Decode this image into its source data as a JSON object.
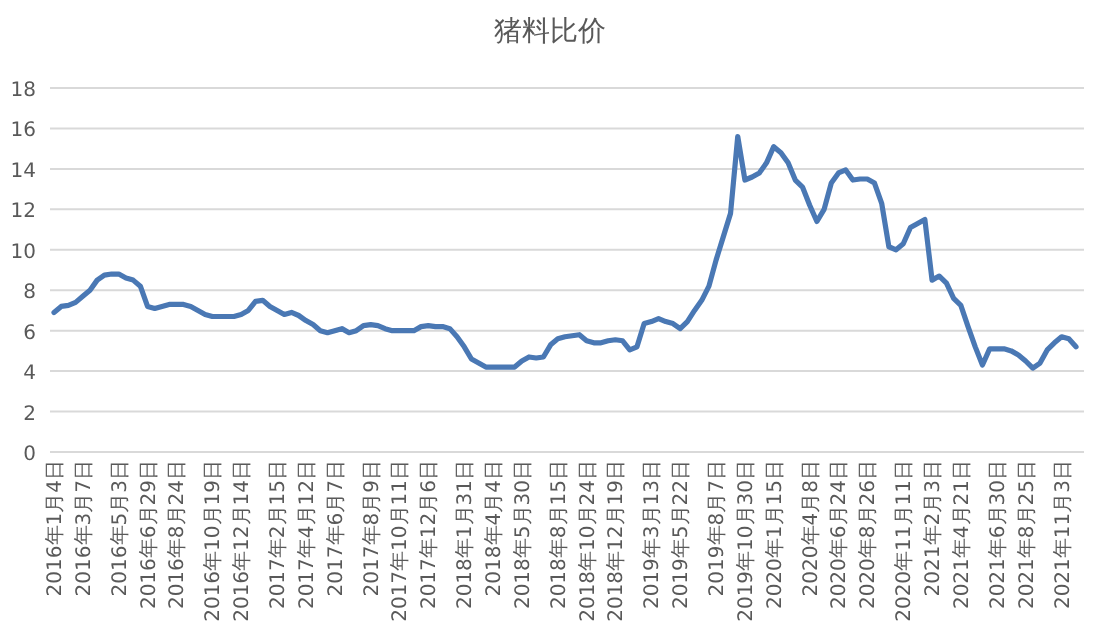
{
  "chart_data": {
    "type": "line",
    "title": "猪料比价",
    "categories": [
      "2016年1月4日",
      null,
      null,
      null,
      "2016年3月7日",
      null,
      null,
      null,
      null,
      "2016年5月3日",
      null,
      null,
      null,
      "2016年6月29日",
      null,
      null,
      null,
      "2016年8月24日",
      null,
      null,
      null,
      null,
      "2016年10月19日",
      null,
      null,
      null,
      "2016年12月14日",
      null,
      null,
      null,
      null,
      "2017年2月15日",
      null,
      null,
      null,
      "2017年4月12日",
      null,
      null,
      null,
      "2017年6月7日",
      null,
      null,
      null,
      null,
      "2017年8月9日",
      null,
      null,
      null,
      "2017年10月11日",
      null,
      null,
      null,
      "2017年12月6日",
      null,
      null,
      null,
      null,
      "2018年1月31日",
      null,
      null,
      null,
      "2018年4月4日",
      null,
      null,
      null,
      "2018年5月30日",
      null,
      null,
      null,
      null,
      "2018年8月15日",
      null,
      null,
      null,
      "2018年10月24日",
      null,
      null,
      null,
      "2018年12月19日",
      null,
      null,
      null,
      null,
      "2019年3月13日",
      null,
      null,
      null,
      "2019年5月22日",
      null,
      null,
      null,
      null,
      "2019年8月7日",
      null,
      null,
      null,
      "2019年10月30日",
      null,
      null,
      null,
      "2020年1月15日",
      null,
      null,
      null,
      null,
      "2020年4月8日",
      null,
      null,
      null,
      "2020年6月24日",
      null,
      null,
      null,
      "2020年8月26日",
      null,
      null,
      null,
      null,
      "2020年11月11日",
      null,
      null,
      null,
      "2021年2月3日",
      null,
      null,
      null,
      "2021年4月21日",
      null,
      null,
      null,
      null,
      "2021年6月30日",
      null,
      null,
      null,
      "2021年8月25日",
      null,
      null,
      null,
      null,
      "2021年11月3日",
      null,
      null
    ],
    "values": [
      6.9,
      7.2,
      7.25,
      7.4,
      7.7,
      8.0,
      8.5,
      8.75,
      8.8,
      8.8,
      8.6,
      8.5,
      8.2,
      7.2,
      7.1,
      7.2,
      7.3,
      7.3,
      7.3,
      7.2,
      7.0,
      6.8,
      6.7,
      6.7,
      6.7,
      6.7,
      6.8,
      7.0,
      7.45,
      7.5,
      7.2,
      7.0,
      6.8,
      6.9,
      6.75,
      6.5,
      6.3,
      6.0,
      5.9,
      6.0,
      6.1,
      5.9,
      6.0,
      6.25,
      6.3,
      6.25,
      6.1,
      6.0,
      6.0,
      6.0,
      6.0,
      6.2,
      6.25,
      6.2,
      6.2,
      6.1,
      5.7,
      5.2,
      4.6,
      4.4,
      4.2,
      4.2,
      4.2,
      4.2,
      4.2,
      4.5,
      4.7,
      4.65,
      4.7,
      5.3,
      5.6,
      5.7,
      5.75,
      5.8,
      5.5,
      5.4,
      5.4,
      5.5,
      5.55,
      5.5,
      5.05,
      5.2,
      6.35,
      6.45,
      6.6,
      6.45,
      6.35,
      6.1,
      6.45,
      7.0,
      7.5,
      8.2,
      9.5,
      10.65,
      11.8,
      15.6,
      13.45,
      13.6,
      13.8,
      14.3,
      15.1,
      14.8,
      14.3,
      13.45,
      13.1,
      12.2,
      11.4,
      12.0,
      13.3,
      13.8,
      13.95,
      13.45,
      13.5,
      13.5,
      13.3,
      12.3,
      10.15,
      10.0,
      10.3,
      11.1,
      11.3,
      11.5,
      8.5,
      8.7,
      8.35,
      7.6,
      7.25,
      6.2,
      5.2,
      4.3,
      5.1,
      5.1,
      5.1,
      5.0,
      4.8,
      4.5,
      4.15,
      4.4,
      5.05,
      5.4,
      5.7,
      5.6,
      5.2
    ],
    "color": "#4a78b4",
    "ylim": [
      0,
      18
    ],
    "yticks": [
      0,
      2,
      4,
      6,
      8,
      10,
      12,
      14,
      16,
      18
    ],
    "grid": "y"
  }
}
